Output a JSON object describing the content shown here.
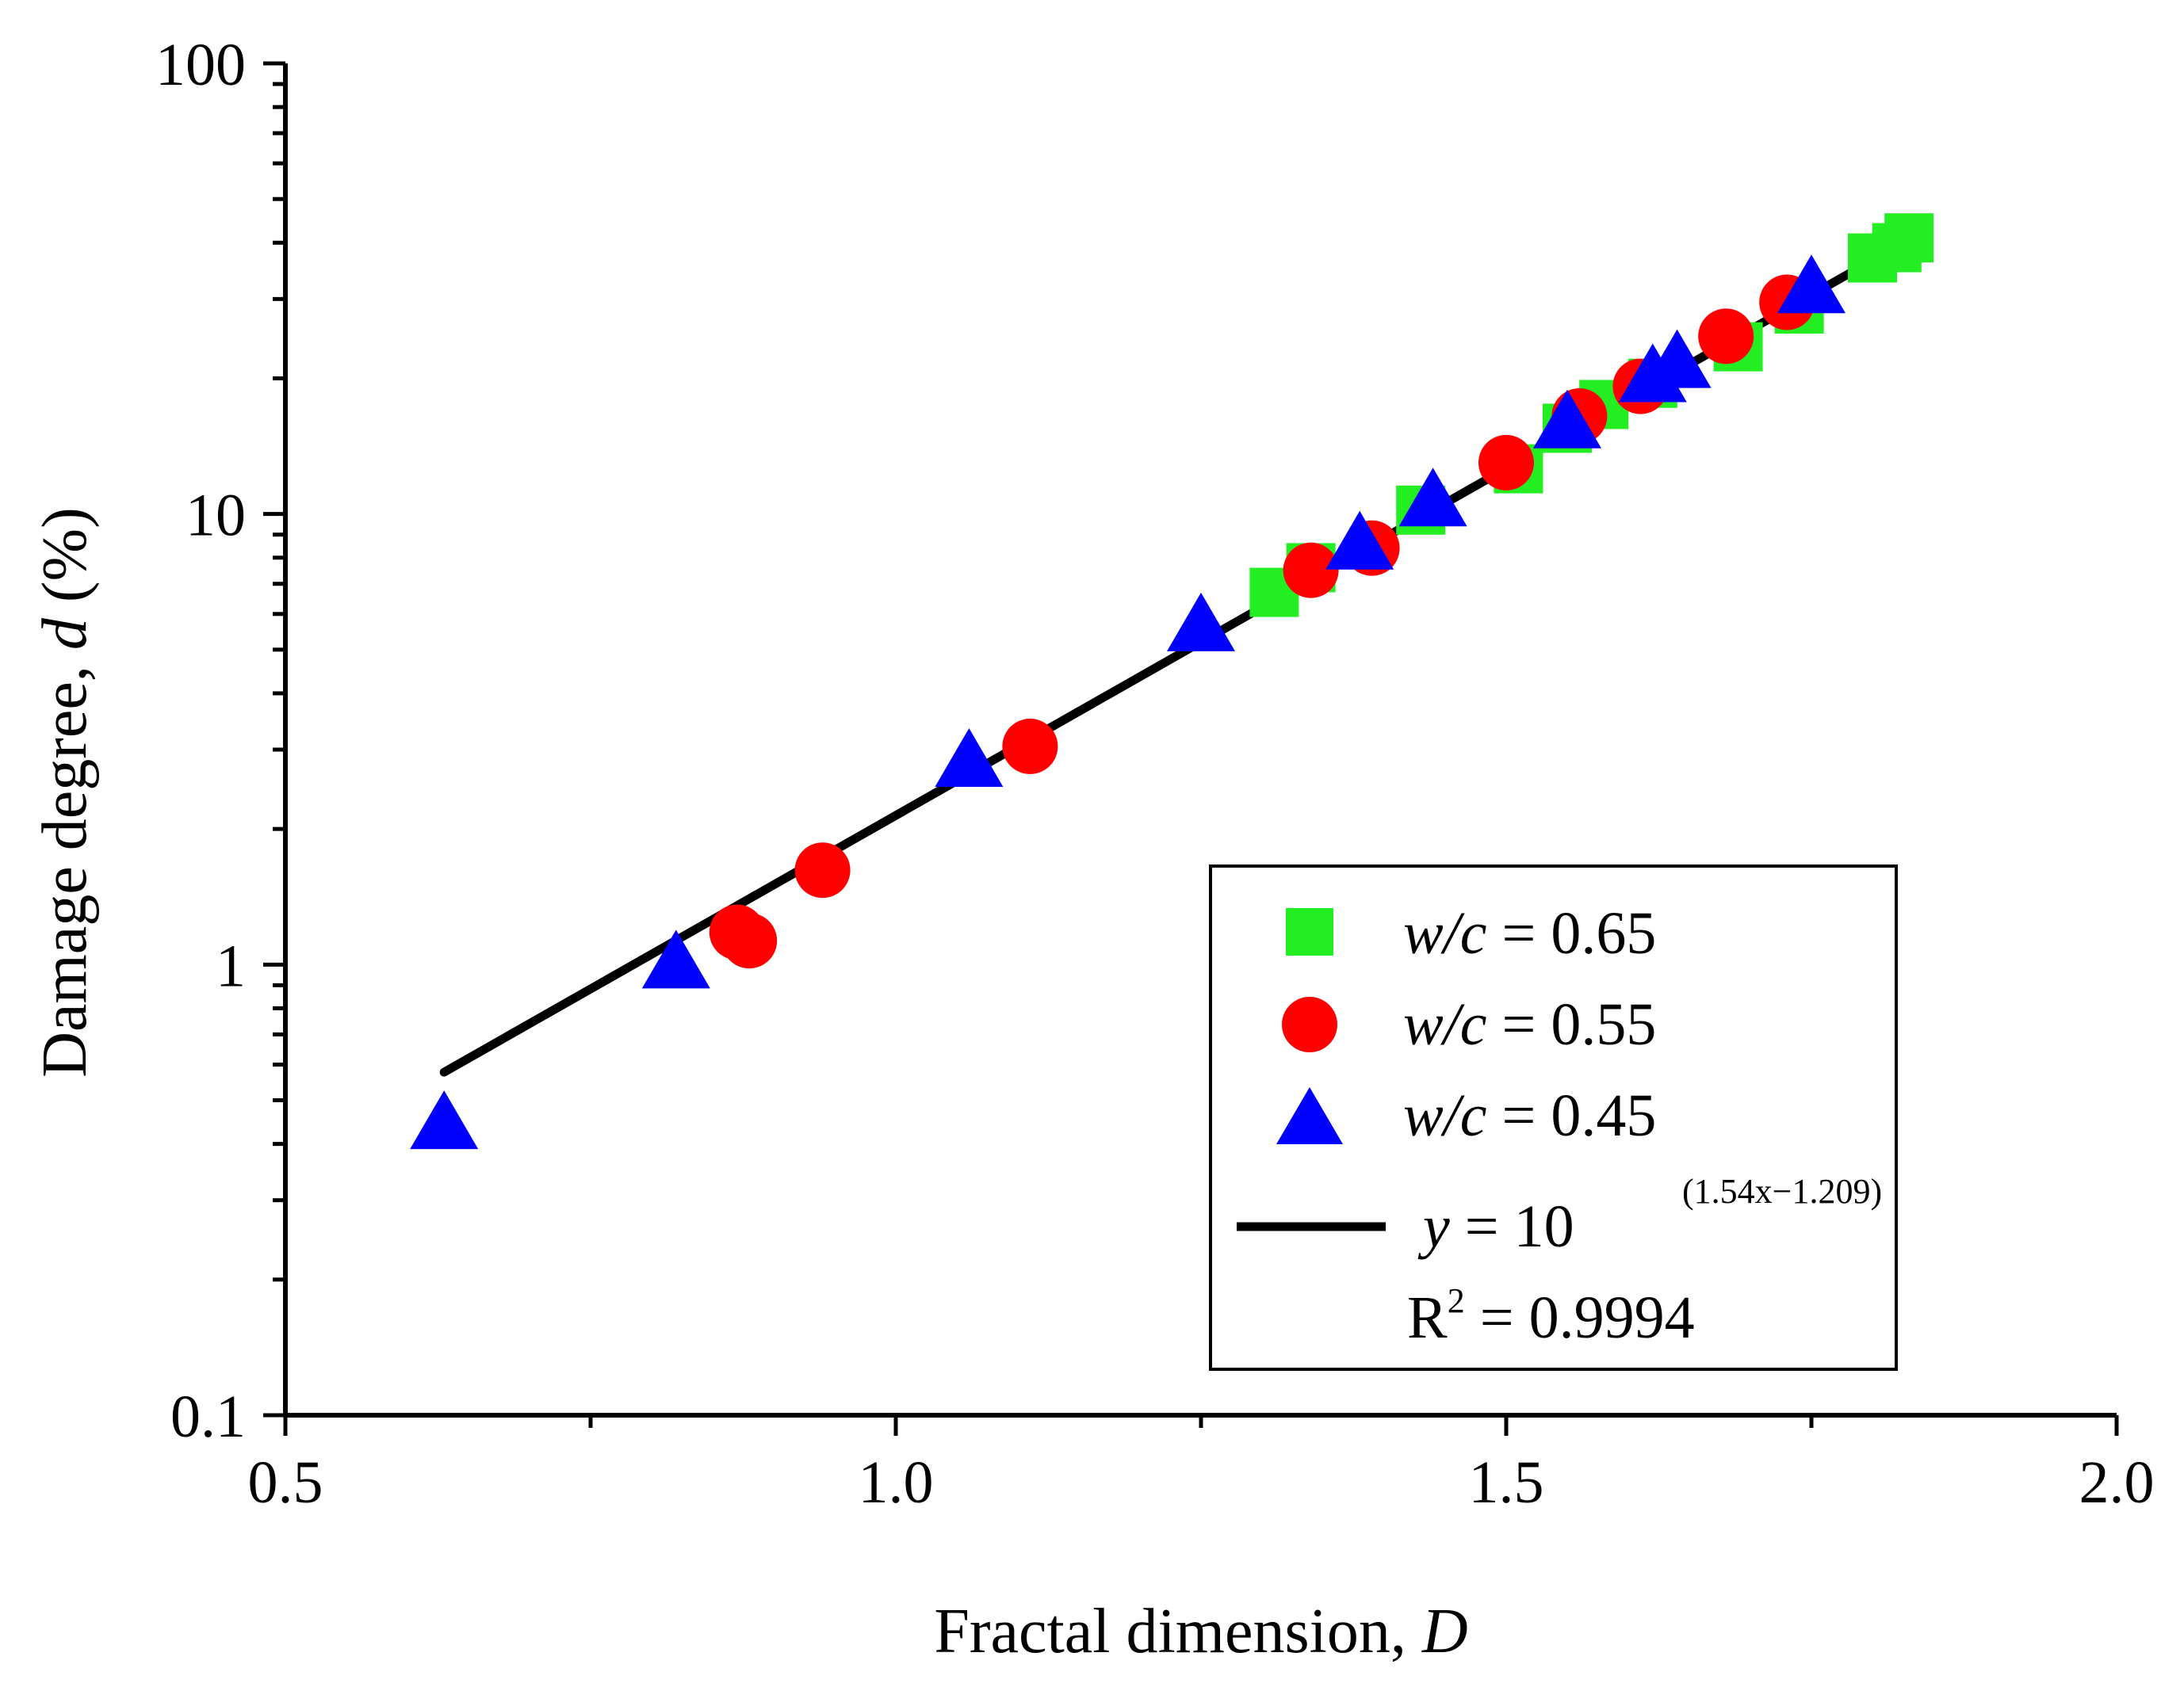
{
  "chart_data": {
    "type": "scatter",
    "xlabel": "Fractal dimension, ",
    "xlabel_var": "D",
    "ylabel": "Damage degree, ",
    "ylabel_var": "d",
    "ylabel_unit": " (%)",
    "xlim": [
      0.5,
      2.0
    ],
    "ylim": [
      0.1,
      100
    ],
    "yscale": "log",
    "x_ticks": [
      "0.5",
      "1.0",
      "1.5",
      "2.0"
    ],
    "y_ticks": [
      "0.1",
      "1",
      "10",
      "100"
    ],
    "grid": false,
    "legend_position": "bottom-right",
    "series": [
      {
        "name": "w/c = 0.65",
        "name_var": "w/c",
        "name_rest": " = 0.65",
        "marker": "square",
        "color": "#22ee22",
        "points": [
          [
            1.31,
            6.7
          ],
          [
            1.34,
            7.6
          ],
          [
            1.43,
            10.2
          ],
          [
            1.51,
            12.6
          ],
          [
            1.55,
            15.5
          ],
          [
            1.58,
            17.5
          ],
          [
            1.62,
            19.5
          ],
          [
            1.69,
            23.5
          ],
          [
            1.74,
            28.5
          ],
          [
            1.8,
            37.0
          ],
          [
            1.82,
            39.0
          ],
          [
            1.83,
            41.0
          ]
        ]
      },
      {
        "name": "w/c = 0.55",
        "name_var": "w/c",
        "name_rest": " = 0.55",
        "marker": "circle",
        "color": "#ff0000",
        "points": [
          [
            0.87,
            1.18
          ],
          [
            0.88,
            1.13
          ],
          [
            0.94,
            1.62
          ],
          [
            1.11,
            3.05
          ],
          [
            1.34,
            7.5
          ],
          [
            1.39,
            8.4
          ],
          [
            1.5,
            13.0
          ],
          [
            1.56,
            16.5
          ],
          [
            1.61,
            19.2
          ],
          [
            1.68,
            24.8
          ],
          [
            1.73,
            29.5
          ]
        ]
      },
      {
        "name": "w/c = 0.45",
        "name_var": "w/c",
        "name_rest": " = 0.45",
        "marker": "triangle",
        "color": "#0000ff",
        "points": [
          [
            0.63,
            0.44
          ],
          [
            0.82,
            1.0
          ],
          [
            1.06,
            2.8
          ],
          [
            1.25,
            5.6
          ],
          [
            1.38,
            8.5
          ],
          [
            1.44,
            10.6
          ],
          [
            1.55,
            15.8
          ],
          [
            1.62,
            20.0
          ],
          [
            1.64,
            21.5
          ],
          [
            1.75,
            31.5
          ]
        ]
      }
    ],
    "fit": {
      "equation_lhs": "y",
      "equation_mid": " = 10",
      "exponent": "(1.54x−1.209)",
      "r2_label": "R",
      "r2_sup": "2",
      "r2_value": " = 0.9994",
      "slope": 1.54,
      "intercept": -1.209,
      "x_range": [
        0.63,
        1.83
      ],
      "color": "#000000"
    }
  }
}
